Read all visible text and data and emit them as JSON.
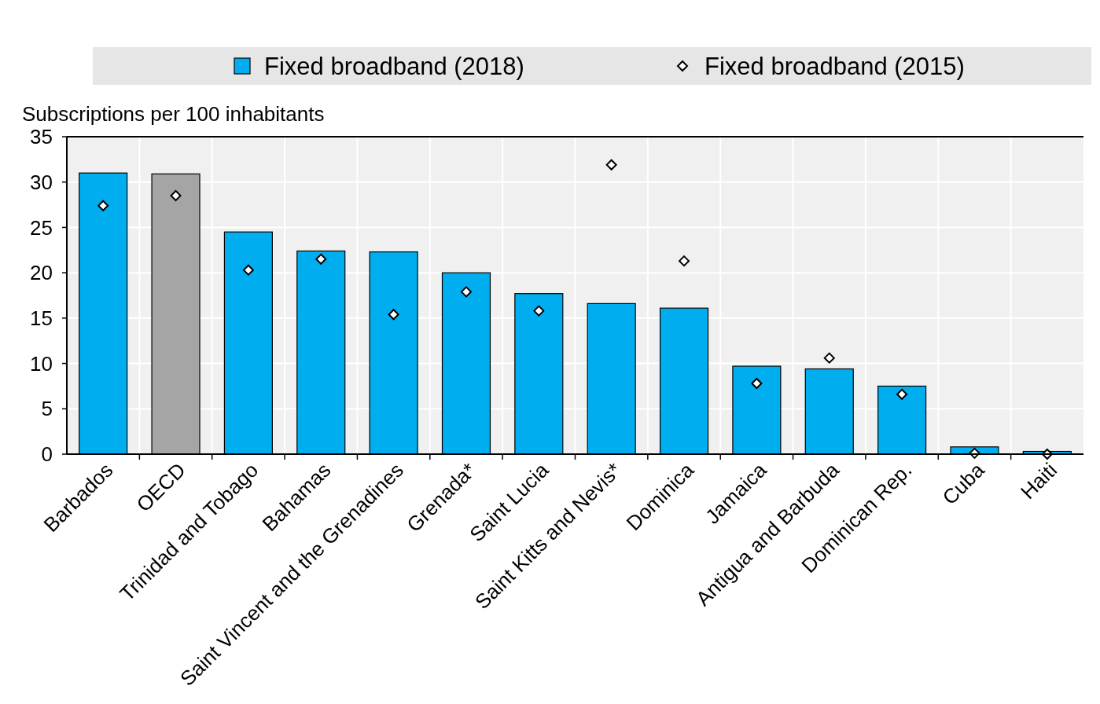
{
  "chart_data": {
    "type": "bar",
    "ylabel": "Subscriptions per 100 inhabitants",
    "categories": [
      "Barbados",
      "OECD",
      "Trinidad and Tobago",
      "Bahamas",
      "Saint Vincent and the Grenadines",
      "Grenada*",
      "Saint Lucia",
      "Saint Kitts and Nevis*",
      "Dominica",
      "Jamaica",
      "Antigua and Barbuda",
      "Dominican Rep.",
      "Cuba",
      "Haiti"
    ],
    "series": [
      {
        "name": "Fixed broadband (2018)",
        "color": "#00aeef",
        "colors": [
          "#00aeef",
          "#a5a5a5",
          "#00aeef",
          "#00aeef",
          "#00aeef",
          "#00aeef",
          "#00aeef",
          "#00aeef",
          "#00aeef",
          "#00aeef",
          "#00aeef",
          "#00aeef",
          "#00aeef",
          "#00aeef"
        ],
        "values": [
          31.0,
          30.9,
          24.5,
          22.4,
          22.3,
          20.0,
          17.7,
          16.6,
          16.1,
          9.7,
          9.4,
          7.5,
          0.8,
          0.3
        ]
      },
      {
        "name": "Fixed broadband (2015)",
        "type": "scatter",
        "color": "#ffffff",
        "marker": "diamond",
        "values": [
          27.4,
          28.5,
          20.3,
          21.5,
          15.4,
          17.9,
          15.8,
          31.9,
          21.3,
          7.8,
          10.6,
          6.6,
          0.1,
          0.0
        ]
      }
    ],
    "ylim": [
      0,
      35
    ],
    "yticks": [
      0,
      5,
      10,
      15,
      20,
      25,
      30,
      35
    ],
    "grid": true,
    "legend": "top"
  }
}
